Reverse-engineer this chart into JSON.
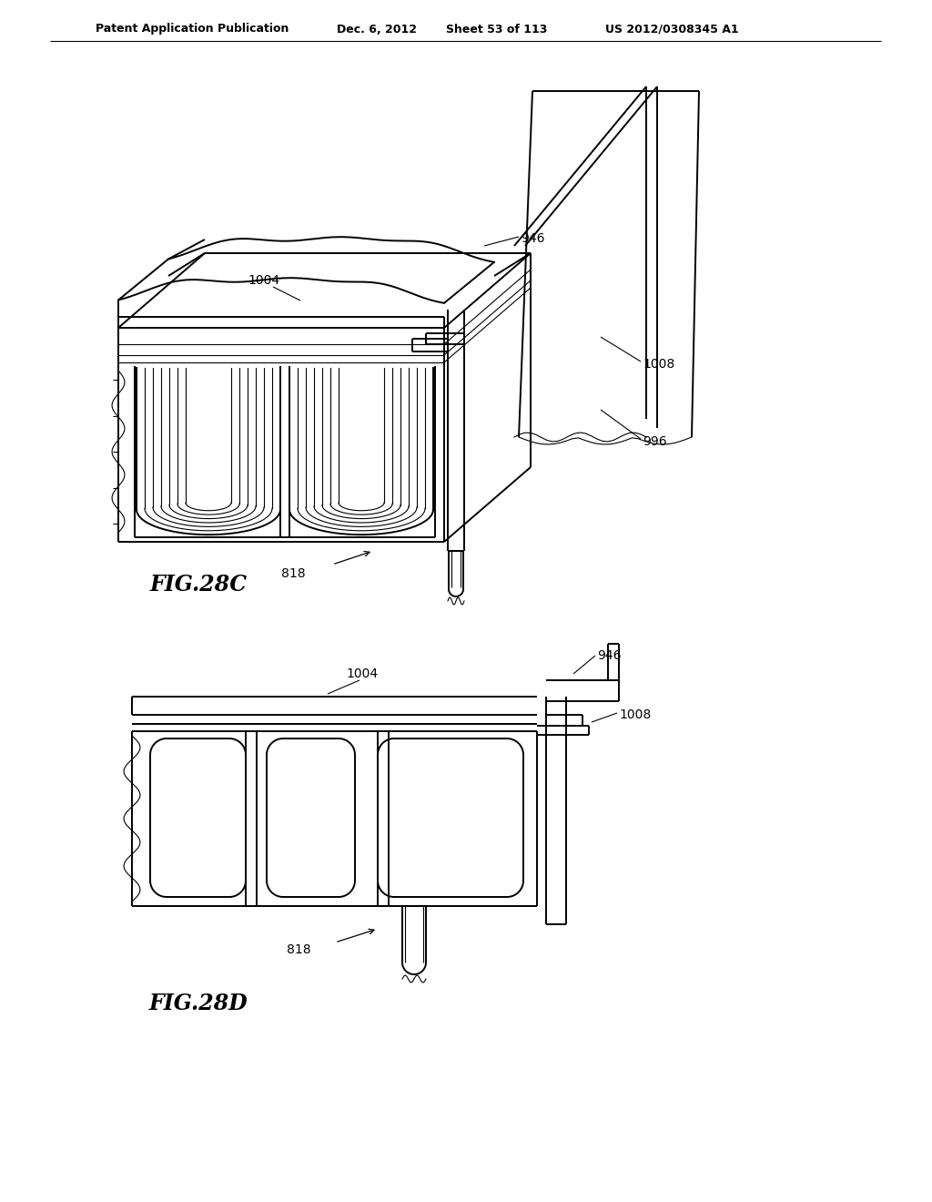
{
  "bg_color": "#ffffff",
  "header_text": "Patent Application Publication",
  "header_date": "Dec. 6, 2012",
  "header_sheet": "Sheet 53 of 113",
  "header_patent": "US 2012/0308345 A1",
  "fig28c_label": "FIG.28C",
  "fig28d_label": "FIG.28D",
  "line_color": "#000000",
  "lw": 1.4,
  "tlw": 0.8
}
